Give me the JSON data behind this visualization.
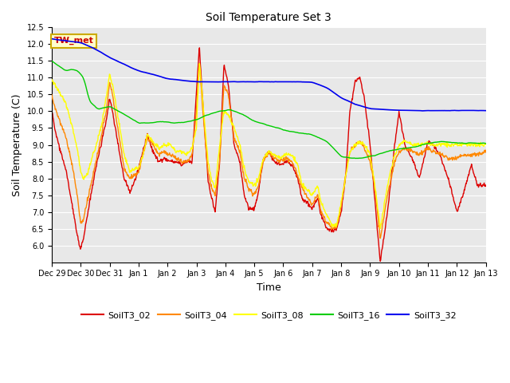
{
  "title": "Soil Temperature Set 3",
  "xlabel": "Time",
  "ylabel": "Soil Temperature (C)",
  "ylim": [
    5.5,
    12.5
  ],
  "bg_color": "#e8e8e8",
  "grid_color": "#ffffff",
  "colors": {
    "SoilT3_02": "#dd0000",
    "SoilT3_04": "#ff8800",
    "SoilT3_08": "#ffff00",
    "SoilT3_16": "#00cc00",
    "SoilT3_32": "#0000ee"
  },
  "tw_met_label": "TW_met",
  "tw_met_bg": "#ffffcc",
  "tw_met_border": "#ccaa00",
  "tw_met_text_color": "#cc0000",
  "xtick_labels": [
    "Dec 29",
    "Dec 30",
    "Dec 31",
    "Jan 1",
    "Jan 2",
    "Jan 3",
    "Jan 4",
    "Jan 5",
    "Jan 6",
    "Jan 7",
    "Jan 8",
    "Jan 9",
    "Jan 10",
    "Jan 11",
    "Jan 12",
    "Jan 13"
  ],
  "yticks": [
    6.0,
    6.5,
    7.0,
    7.5,
    8.0,
    8.5,
    9.0,
    9.5,
    10.0,
    10.5,
    11.0,
    11.5,
    12.0,
    12.5
  ],
  "figsize": [
    6.4,
    4.8
  ],
  "dpi": 100
}
